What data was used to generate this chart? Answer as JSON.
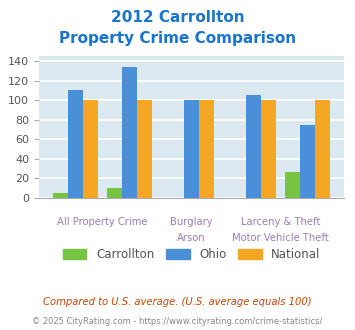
{
  "title_line1": "2012 Carrollton",
  "title_line2": "Property Crime Comparison",
  "title_color": "#1874cd",
  "carrollton": [
    5,
    10,
    0,
    0,
    27
  ],
  "ohio": [
    110,
    134,
    100,
    105,
    75
  ],
  "national": [
    100,
    100,
    100,
    100,
    100
  ],
  "bar_color_carrollton": "#76c442",
  "bar_color_ohio": "#4a90d9",
  "bar_color_national": "#f5a623",
  "positions": [
    0.0,
    1.0,
    2.15,
    3.3,
    4.3
  ],
  "bar_width": 0.28,
  "ylim": [
    0,
    145
  ],
  "yticks": [
    0,
    20,
    40,
    60,
    80,
    100,
    120,
    140
  ],
  "background_color": "#dce9f0",
  "grid_color": "#ffffff",
  "legend_labels": [
    "Carrollton",
    "Ohio",
    "National"
  ],
  "label_color": "#9e7db5",
  "row1_labels": [
    "All Property Crime",
    "Burglary",
    "Larceny & Theft"
  ],
  "row2_labels": [
    "",
    "Arson",
    "Motor Vehicle Theft"
  ],
  "footnote1": "Compared to U.S. average. (U.S. average equals 100)",
  "footnote2": "© 2025 CityRating.com - https://www.cityrating.com/crime-statistics/",
  "footnote1_color": "#cc4400",
  "footnote2_color": "#888888"
}
